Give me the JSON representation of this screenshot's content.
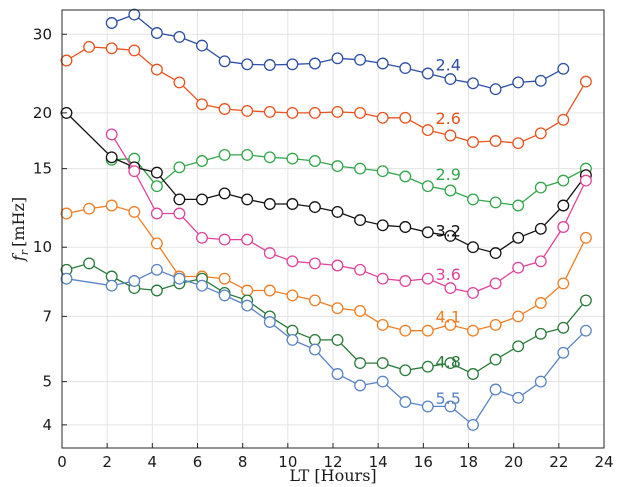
{
  "chart_data": {
    "type": "line",
    "xlabel": "LT [Hours]",
    "ylabel_var": "f",
    "ylabel_sub": "r",
    "ylabel_unit": "[mHz]",
    "yscale": "log",
    "xlim": [
      0,
      24
    ],
    "ylim": [
      3.55,
      34
    ],
    "xticks": [
      "0",
      "2",
      "4",
      "6",
      "8",
      "10",
      "12",
      "14",
      "16",
      "18",
      "20",
      "22",
      "24"
    ],
    "yticks": [
      "4",
      "5",
      "7",
      "10",
      "15",
      "20",
      "30"
    ],
    "grid": true,
    "series": [
      {
        "name": "2.4",
        "color": "#2c4fa3",
        "filled": false,
        "label_pos": [
          17.1,
          25.7
        ],
        "points": [
          [
            2.2,
            31.8
          ],
          [
            3.2,
            33.2
          ],
          [
            4.2,
            30.2
          ],
          [
            5.2,
            29.6
          ],
          [
            6.2,
            28.3
          ],
          [
            7.2,
            26.1
          ],
          [
            8.2,
            25.7
          ],
          [
            9.2,
            25.6
          ],
          [
            10.2,
            25.7
          ],
          [
            11.2,
            25.8
          ],
          [
            12.2,
            26.5
          ],
          [
            13.2,
            26.3
          ],
          [
            14.2,
            25.8
          ],
          [
            15.2,
            25.2
          ],
          [
            16.2,
            24.5
          ],
          [
            17.2,
            23.8
          ],
          [
            18.2,
            23.3
          ],
          [
            19.2,
            22.6
          ],
          [
            20.2,
            23.4
          ],
          [
            21.2,
            23.6
          ],
          [
            22.2,
            25.1
          ]
        ]
      },
      {
        "name": "2.6",
        "color": "#e8531f",
        "filled": false,
        "label_pos": [
          17.1,
          19.5
        ],
        "points": [
          [
            0.2,
            26.2
          ],
          [
            1.2,
            28.1
          ],
          [
            2.2,
            27.9
          ],
          [
            3.2,
            27.6
          ],
          [
            4.2,
            25.0
          ],
          [
            5.2,
            23.4
          ],
          [
            6.2,
            20.9
          ],
          [
            7.2,
            20.4
          ],
          [
            8.2,
            20.2
          ],
          [
            9.2,
            20.1
          ],
          [
            10.2,
            20.0
          ],
          [
            11.2,
            20.0
          ],
          [
            12.2,
            20.1
          ],
          [
            13.2,
            20.0
          ],
          [
            14.2,
            19.5
          ],
          [
            15.2,
            19.5
          ],
          [
            16.2,
            18.3
          ],
          [
            17.2,
            17.8
          ],
          [
            18.2,
            17.2
          ],
          [
            19.2,
            17.3
          ],
          [
            20.2,
            17.1
          ],
          [
            21.2,
            18.0
          ],
          [
            22.2,
            19.3
          ],
          [
            23.2,
            23.5
          ]
        ]
      },
      {
        "name": "2.9",
        "color": "#33a64b",
        "filled": false,
        "label_pos": [
          17.1,
          14.6
        ],
        "points": [
          [
            2.2,
            15.7
          ],
          [
            3.2,
            15.8
          ],
          [
            4.2,
            13.7
          ],
          [
            5.2,
            15.1
          ],
          [
            6.2,
            15.6
          ],
          [
            7.2,
            16.1
          ],
          [
            8.2,
            16.1
          ],
          [
            9.2,
            15.9
          ],
          [
            10.2,
            15.8
          ],
          [
            11.2,
            15.6
          ],
          [
            12.2,
            15.2
          ],
          [
            13.2,
            15.0
          ],
          [
            14.2,
            14.8
          ],
          [
            15.2,
            14.4
          ],
          [
            16.2,
            13.7
          ],
          [
            17.2,
            13.4
          ],
          [
            18.2,
            12.8
          ],
          [
            19.2,
            12.6
          ],
          [
            20.2,
            12.4
          ],
          [
            21.2,
            13.6
          ],
          [
            22.2,
            14.1
          ],
          [
            23.2,
            15.0
          ]
        ]
      },
      {
        "name": "3.2",
        "color": "#111111",
        "filled": false,
        "label_pos": [
          17.1,
          10.9
        ],
        "points": [
          [
            0.2,
            20.0
          ],
          [
            2.2,
            15.9
          ],
          [
            3.2,
            15.1
          ],
          [
            4.2,
            14.7
          ],
          [
            5.2,
            12.8
          ],
          [
            6.2,
            12.8
          ],
          [
            7.2,
            13.2
          ],
          [
            8.2,
            12.8
          ],
          [
            9.2,
            12.5
          ],
          [
            10.2,
            12.5
          ],
          [
            11.2,
            12.3
          ],
          [
            12.2,
            12.0
          ],
          [
            13.2,
            11.5
          ],
          [
            14.2,
            11.2
          ],
          [
            15.2,
            11.1
          ],
          [
            16.2,
            10.8
          ],
          [
            17.2,
            10.6
          ],
          [
            18.2,
            10.0
          ],
          [
            19.2,
            9.7
          ],
          [
            20.2,
            10.5
          ],
          [
            21.2,
            11.0
          ],
          [
            22.2,
            12.4
          ],
          [
            23.2,
            14.5
          ]
        ]
      },
      {
        "name": "3.6",
        "color": "#e0449a",
        "filled": false,
        "label_pos": [
          17.1,
          8.7
        ],
        "points": [
          [
            2.2,
            17.9
          ],
          [
            3.2,
            14.8
          ],
          [
            4.2,
            11.9
          ],
          [
            5.2,
            11.9
          ],
          [
            6.2,
            10.5
          ],
          [
            7.2,
            10.4
          ],
          [
            8.2,
            10.4
          ],
          [
            9.2,
            9.7
          ],
          [
            10.2,
            9.3
          ],
          [
            11.2,
            9.2
          ],
          [
            12.2,
            9.1
          ],
          [
            13.2,
            8.9
          ],
          [
            14.2,
            8.5
          ],
          [
            15.2,
            8.4
          ],
          [
            16.2,
            8.5
          ],
          [
            17.2,
            8.1
          ],
          [
            18.2,
            7.9
          ],
          [
            19.2,
            8.3
          ],
          [
            20.2,
            9.0
          ],
          [
            21.2,
            9.3
          ],
          [
            22.2,
            11.1
          ],
          [
            23.2,
            14.1
          ]
        ]
      },
      {
        "name": "4.1",
        "color": "#f07e24",
        "filled": false,
        "label_pos": [
          17.1,
          7.0
        ],
        "points": [
          [
            0.2,
            11.9
          ],
          [
            1.2,
            12.2
          ],
          [
            2.2,
            12.4
          ],
          [
            3.2,
            12.0
          ],
          [
            4.2,
            10.2
          ],
          [
            5.2,
            8.6
          ],
          [
            6.2,
            8.6
          ],
          [
            7.2,
            8.5
          ],
          [
            8.2,
            8.0
          ],
          [
            9.2,
            8.0
          ],
          [
            10.2,
            7.8
          ],
          [
            11.2,
            7.6
          ],
          [
            12.2,
            7.3
          ],
          [
            13.2,
            7.2
          ],
          [
            14.2,
            6.7
          ],
          [
            15.2,
            6.5
          ],
          [
            16.2,
            6.5
          ],
          [
            17.2,
            6.7
          ],
          [
            18.2,
            6.5
          ],
          [
            19.2,
            6.7
          ],
          [
            20.2,
            7.0
          ],
          [
            21.2,
            7.5
          ],
          [
            22.2,
            8.3
          ],
          [
            23.2,
            10.5
          ]
        ]
      },
      {
        "name": "4.8",
        "color": "#2a7a3a",
        "filled": false,
        "label_pos": [
          17.1,
          5.55
        ],
        "points": [
          [
            0.2,
            8.9
          ],
          [
            1.2,
            9.2
          ],
          [
            2.2,
            8.6
          ],
          [
            3.2,
            8.1
          ],
          [
            4.2,
            8.0
          ],
          [
            5.2,
            8.3
          ],
          [
            6.2,
            8.5
          ],
          [
            7.2,
            7.9
          ],
          [
            8.2,
            7.6
          ],
          [
            9.2,
            7.0
          ],
          [
            10.2,
            6.5
          ],
          [
            11.2,
            6.2
          ],
          [
            12.2,
            6.2
          ],
          [
            13.2,
            5.5
          ],
          [
            14.2,
            5.5
          ],
          [
            15.2,
            5.3
          ],
          [
            16.2,
            5.4
          ],
          [
            17.2,
            5.5
          ],
          [
            18.2,
            5.2
          ],
          [
            19.2,
            5.6
          ],
          [
            20.2,
            6.0
          ],
          [
            21.2,
            6.4
          ],
          [
            22.2,
            6.6
          ],
          [
            23.2,
            7.6
          ]
        ]
      },
      {
        "name": "5.5",
        "color": "#5b84c4",
        "filled": false,
        "label_pos": [
          17.1,
          4.6
        ],
        "points": [
          [
            0.2,
            8.5
          ],
          [
            2.2,
            8.2
          ],
          [
            3.2,
            8.4
          ],
          [
            4.2,
            8.9
          ],
          [
            5.2,
            8.5
          ],
          [
            6.2,
            8.2
          ],
          [
            7.2,
            7.8
          ],
          [
            8.2,
            7.4
          ],
          [
            9.2,
            6.8
          ],
          [
            10.2,
            6.2
          ],
          [
            11.2,
            5.9
          ],
          [
            12.2,
            5.2
          ],
          [
            13.2,
            4.9
          ],
          [
            14.2,
            5.0
          ],
          [
            15.2,
            4.5
          ],
          [
            16.2,
            4.4
          ],
          [
            17.2,
            4.4
          ],
          [
            18.2,
            4.0
          ],
          [
            19.2,
            4.8
          ],
          [
            20.2,
            4.6
          ],
          [
            21.2,
            5.0
          ],
          [
            22.2,
            5.8
          ],
          [
            23.2,
            6.5
          ]
        ]
      }
    ]
  }
}
